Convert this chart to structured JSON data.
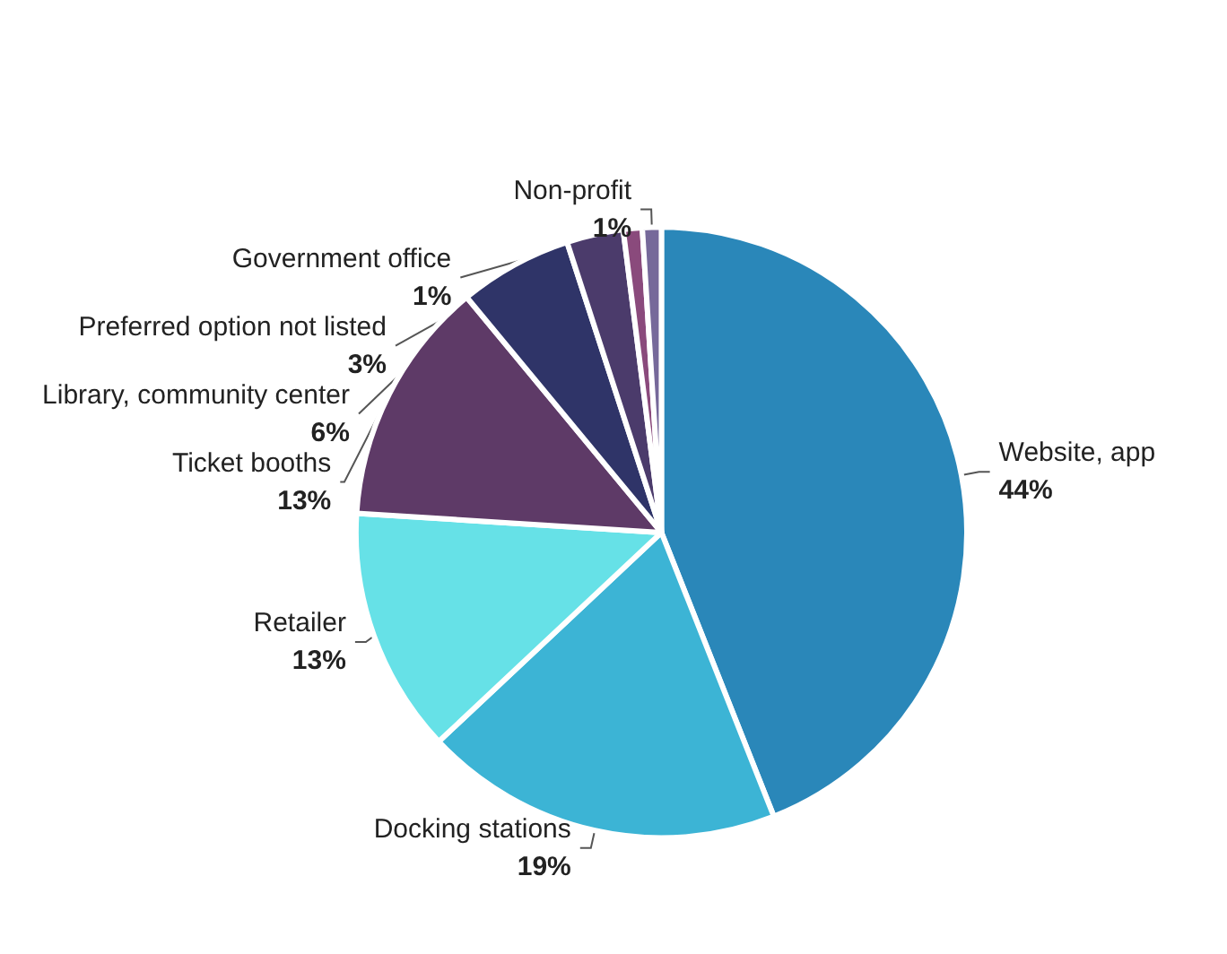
{
  "chart_data": {
    "type": "pie",
    "categories": [
      "Website, app",
      "Docking stations",
      "Retailer",
      "Ticket booths",
      "Library, community center",
      "Preferred option not listed",
      "Government office",
      "Non-profit"
    ],
    "values": [
      44,
      19,
      13,
      13,
      6,
      3,
      1,
      1
    ],
    "value_labels": [
      "44%",
      "19%",
      "13%",
      "13%",
      "6%",
      "3%",
      "1%",
      "1%"
    ],
    "colors": [
      "#2a87b9",
      "#3cb4d5",
      "#66e1e7",
      "#5e3a67",
      "#2f3468",
      "#4b3b6b",
      "#8a4a7c",
      "#76699a"
    ],
    "legend": false
  }
}
